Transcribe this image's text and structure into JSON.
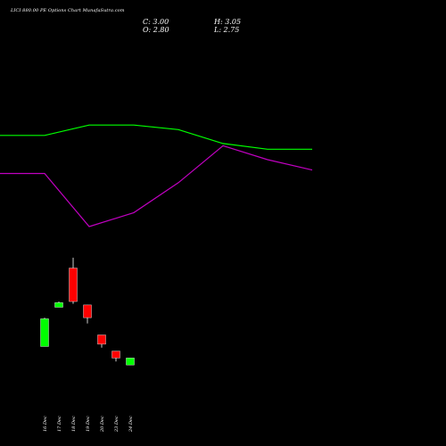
{
  "header": {
    "title": "LICI 880.00 PE Options Chart MunafaSutra.com",
    "close": "C: 3.00",
    "open": "O: 2.80",
    "high": "H: 3.05",
    "low": "L: 2.75"
  },
  "chart_data": {
    "type": "candlestick",
    "categories": [
      "16 Dec",
      "17 Dec",
      "18 Dec",
      "19 Dec",
      "20 Dec",
      "23 Dec",
      "24 Dec"
    ],
    "candles": [
      {
        "open": 1.8,
        "high": 3.05,
        "low": 1.8,
        "close": 3.0,
        "direction": "up"
      },
      {
        "open": 3.5,
        "high": 3.75,
        "low": 3.5,
        "close": 3.7,
        "direction": "up"
      },
      {
        "open": 5.2,
        "high": 5.65,
        "low": 3.65,
        "close": 3.75,
        "direction": "down"
      },
      {
        "open": 3.6,
        "high": 3.6,
        "low": 2.8,
        "close": 3.05,
        "direction": "down"
      },
      {
        "open": 2.3,
        "high": 2.3,
        "low": 1.75,
        "close": 1.9,
        "direction": "down"
      },
      {
        "open": 1.6,
        "high": 1.6,
        "low": 1.15,
        "close": 1.3,
        "direction": "down"
      },
      {
        "open": 1.0,
        "high": 1.3,
        "low": 1.0,
        "close": 1.3,
        "direction": "up"
      }
    ],
    "overlay_lines": [
      {
        "color": "#00ff00",
        "values": [
          10.95,
          10.95,
          11.4,
          11.4,
          11.2,
          10.6,
          10.35,
          10.35
        ]
      },
      {
        "color": "#c000c0",
        "values": [
          9.3,
          9.3,
          7.0,
          7.6,
          8.9,
          10.5,
          9.9,
          9.45
        ]
      }
    ],
    "ylim": [
      0,
      14.5
    ],
    "colors": {
      "up": "#00ff00",
      "down": "#ff0000",
      "background": "#000000"
    }
  }
}
